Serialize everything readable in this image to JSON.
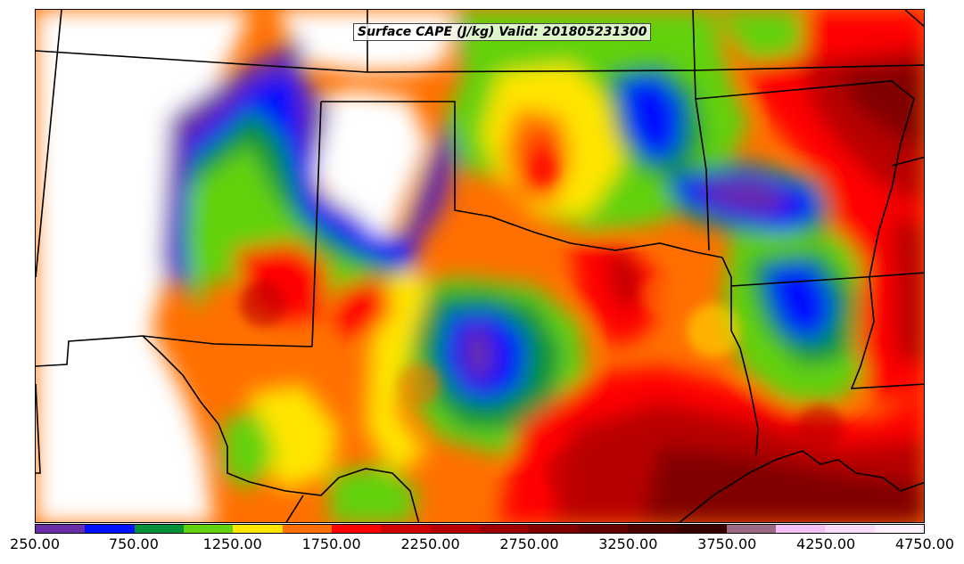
{
  "title": "Surface CAPE (J/kg) Valid: 201805231300",
  "field": {
    "background_color": "#ff7000"
  },
  "colorbar": {
    "colors": [
      "#6a2fa6",
      "#0010ff",
      "#05913a",
      "#62d20e",
      "#ffe500",
      "#ff6e00",
      "#ff0000",
      "#d10000",
      "#b80000",
      "#9c0000",
      "#800000",
      "#660000",
      "#4d0000",
      "#3a0000",
      "#9b6a84",
      "#f3c0f5",
      "#f8dcf9",
      "#fdf1fd"
    ],
    "tick_labels": [
      "250.00",
      "750.00",
      "1250.00",
      "1750.00",
      "2250.00",
      "2750.00",
      "3250.00",
      "3750.00",
      "4250.00",
      "4750.00"
    ]
  }
}
